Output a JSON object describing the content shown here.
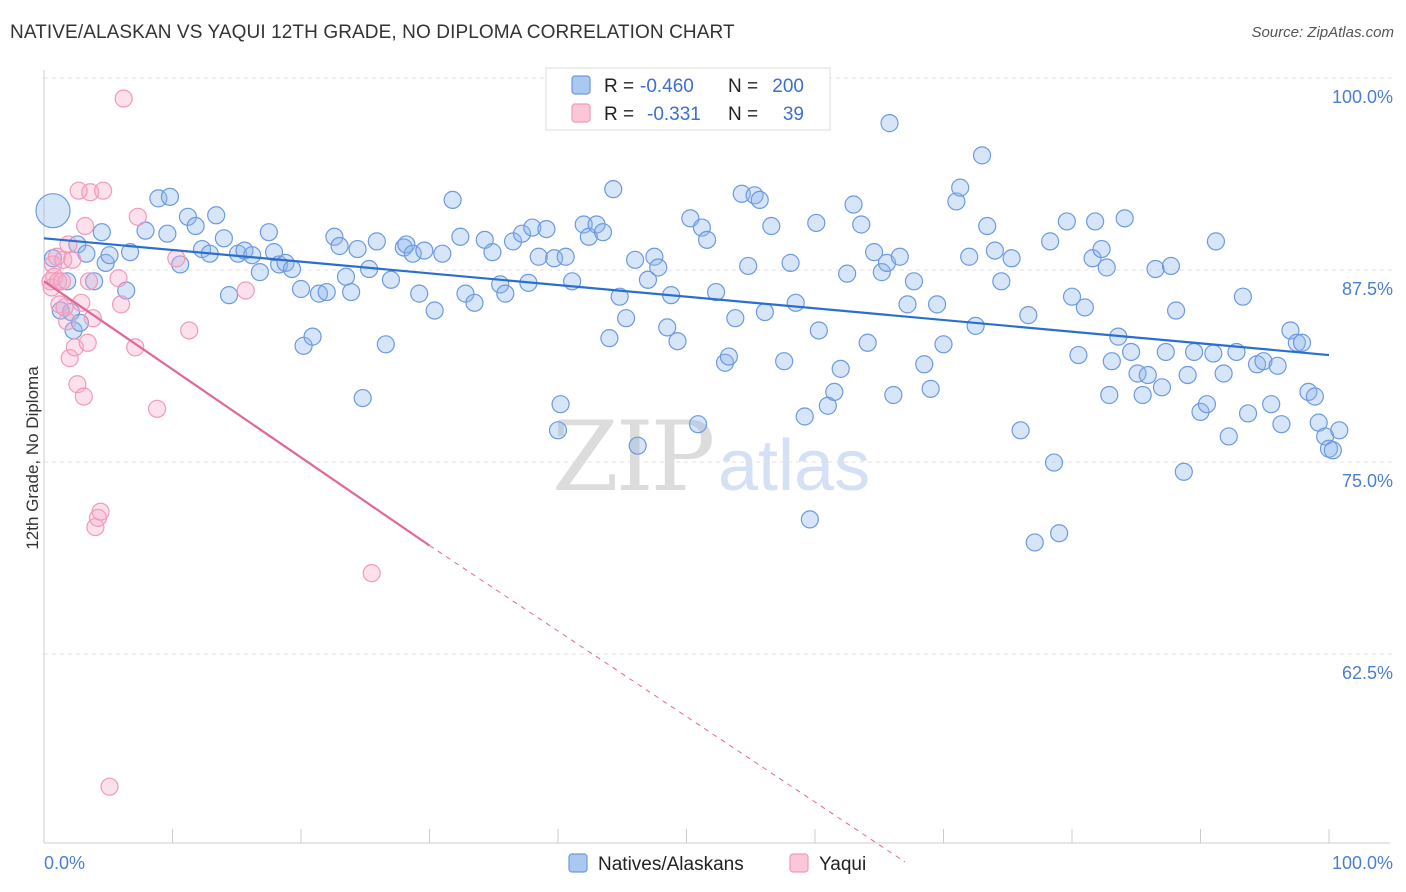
{
  "header": {
    "title": "NATIVE/ALASKAN VS YAQUI 12TH GRADE, NO DIPLOMA CORRELATION CHART",
    "source": "Source: ZipAtlas.com"
  },
  "legend": {
    "rows": [
      {
        "r_label": "R =",
        "r_value": "-0.460",
        "n_label": "N =",
        "n_value": "200",
        "color": "#6c9ae0"
      },
      {
        "r_label": "R =",
        "r_value": "-0.331",
        "n_label": "N =",
        "n_value": "39",
        "color": "#f09ab8"
      }
    ]
  },
  "bottom_legend": {
    "items": [
      {
        "label": "Natives/Alaskans",
        "color": "#6c9ae0"
      },
      {
        "label": "Yaqui",
        "color": "#f09ab8"
      }
    ]
  },
  "watermark": {
    "zip": "ZIP",
    "atlas": "atlas"
  },
  "chart_data": {
    "type": "scatter",
    "title": "NATIVE/ALASKAN VS YAQUI 12TH GRADE, NO DIPLOMA CORRELATION CHART",
    "xlabel": "",
    "ylabel": "12th Grade, No Diploma",
    "xlim": [
      0,
      100
    ],
    "ylim": [
      52.5,
      102.5
    ],
    "x_tick_labels": [
      "0.0%",
      "100.0%"
    ],
    "y_ticks": [
      100,
      87.5,
      75,
      62.5
    ],
    "y_tick_labels": [
      "100.0%",
      "87.5%",
      "75.0%",
      "62.5%"
    ],
    "grid": "horizontal dashed",
    "legend_position": "top-center",
    "colors": {
      "natives": "#6c9ae0",
      "yaqui": "#f09ab8",
      "natives_line": "#2a6fd0",
      "yaqui_line": "#e0679a"
    },
    "series": [
      {
        "name": "Natives/Alaskans",
        "trend": {
          "x": [
            0,
            100
          ],
          "y": [
            90.8,
            83.2
          ]
        },
        "points": [
          [
            0.7,
            92.6
          ],
          [
            0.7,
            89.5
          ],
          [
            1.3,
            86.1
          ],
          [
            1.8,
            88.0
          ],
          [
            2.1,
            86.0
          ],
          [
            2.3,
            84.8
          ],
          [
            2.6,
            90.4
          ],
          [
            2.8,
            85.3
          ],
          [
            3.3,
            89.8
          ],
          [
            3.9,
            88.0
          ],
          [
            4.5,
            91.2
          ],
          [
            4.8,
            89.2
          ],
          [
            5.1,
            89.7
          ],
          [
            6.4,
            87.4
          ],
          [
            6.7,
            89.9
          ],
          [
            7.9,
            91.3
          ],
          [
            8.9,
            93.4
          ],
          [
            9.6,
            91.1
          ],
          [
            9.8,
            93.5
          ],
          [
            10.6,
            89.1
          ],
          [
            11.2,
            92.2
          ],
          [
            11.8,
            91.6
          ],
          [
            12.3,
            90.1
          ],
          [
            12.9,
            89.8
          ],
          [
            13.4,
            92.3
          ],
          [
            14.0,
            90.8
          ],
          [
            14.4,
            87.1
          ],
          [
            15.1,
            89.8
          ],
          [
            15.6,
            90.0
          ],
          [
            16.2,
            89.7
          ],
          [
            16.8,
            88.6
          ],
          [
            17.5,
            91.2
          ],
          [
            17.9,
            89.9
          ],
          [
            18.3,
            89.1
          ],
          [
            18.8,
            89.2
          ],
          [
            19.3,
            88.8
          ],
          [
            20.0,
            87.5
          ],
          [
            20.2,
            83.8
          ],
          [
            20.9,
            84.4
          ],
          [
            21.4,
            87.2
          ],
          [
            22.0,
            87.3
          ],
          [
            22.6,
            90.9
          ],
          [
            23.0,
            90.3
          ],
          [
            23.5,
            88.3
          ],
          [
            23.9,
            87.3
          ],
          [
            24.4,
            90.1
          ],
          [
            24.8,
            80.4
          ],
          [
            25.3,
            88.8
          ],
          [
            25.9,
            90.6
          ],
          [
            26.6,
            83.9
          ],
          [
            27.0,
            88.1
          ],
          [
            28.0,
            90.2
          ],
          [
            28.2,
            90.4
          ],
          [
            28.7,
            89.8
          ],
          [
            29.2,
            87.2
          ],
          [
            29.6,
            90.0
          ],
          [
            30.4,
            86.1
          ],
          [
            31.0,
            89.8
          ],
          [
            31.8,
            93.3
          ],
          [
            32.4,
            90.9
          ],
          [
            32.8,
            87.2
          ],
          [
            33.5,
            86.6
          ],
          [
            34.3,
            90.7
          ],
          [
            34.9,
            89.9
          ],
          [
            35.5,
            87.8
          ],
          [
            35.9,
            87.2
          ],
          [
            36.5,
            90.6
          ],
          [
            37.2,
            91.1
          ],
          [
            37.7,
            87.9
          ],
          [
            38.0,
            91.5
          ],
          [
            38.5,
            89.6
          ],
          [
            39.1,
            91.4
          ],
          [
            39.7,
            89.5
          ],
          [
            40.0,
            78.3
          ],
          [
            40.6,
            89.6
          ],
          [
            41.1,
            88.0
          ],
          [
            42.0,
            91.7
          ],
          [
            42.4,
            90.9
          ],
          [
            43.0,
            91.7
          ],
          [
            43.5,
            91.2
          ],
          [
            44.0,
            84.3
          ],
          [
            44.3,
            94.0
          ],
          [
            44.8,
            87.0
          ],
          [
            45.3,
            85.6
          ],
          [
            46.0,
            89.4
          ],
          [
            46.2,
            77.3
          ],
          [
            47.0,
            88.1
          ],
          [
            47.5,
            89.6
          ],
          [
            47.8,
            88.9
          ],
          [
            48.5,
            85.0
          ],
          [
            48.8,
            87.1
          ],
          [
            49.3,
            84.1
          ],
          [
            50.3,
            92.1
          ],
          [
            50.9,
            78.7
          ],
          [
            51.2,
            91.5
          ],
          [
            51.6,
            90.7
          ],
          [
            52.3,
            87.3
          ],
          [
            53.0,
            82.7
          ],
          [
            53.3,
            83.1
          ],
          [
            53.8,
            85.6
          ],
          [
            54.3,
            93.7
          ],
          [
            54.8,
            89.0
          ],
          [
            55.3,
            93.6
          ],
          [
            55.7,
            93.3
          ],
          [
            56.1,
            86.0
          ],
          [
            56.6,
            91.6
          ],
          [
            57.6,
            82.8
          ],
          [
            58.1,
            89.2
          ],
          [
            58.5,
            86.6
          ],
          [
            59.2,
            79.2
          ],
          [
            59.6,
            72.5
          ],
          [
            60.1,
            91.8
          ],
          [
            60.3,
            84.8
          ],
          [
            61.0,
            79.9
          ],
          [
            61.5,
            80.8
          ],
          [
            62.0,
            82.3
          ],
          [
            62.5,
            88.5
          ],
          [
            63.0,
            93.0
          ],
          [
            63.6,
            91.7
          ],
          [
            64.1,
            84.0
          ],
          [
            64.6,
            89.9
          ],
          [
            65.2,
            88.6
          ],
          [
            65.6,
            89.2
          ],
          [
            66.1,
            80.6
          ],
          [
            66.6,
            89.6
          ],
          [
            67.2,
            86.5
          ],
          [
            67.7,
            88.0
          ],
          [
            68.5,
            82.6
          ],
          [
            69.0,
            81.0
          ],
          [
            69.5,
            86.5
          ],
          [
            70.0,
            83.9
          ],
          [
            71.0,
            93.2
          ],
          [
            71.3,
            94.1
          ],
          [
            72.0,
            89.6
          ],
          [
            72.5,
            85.1
          ],
          [
            73.0,
            96.2
          ],
          [
            73.4,
            91.6
          ],
          [
            74.0,
            90.0
          ],
          [
            74.5,
            88.0
          ],
          [
            75.3,
            89.5
          ],
          [
            76.0,
            78.3
          ],
          [
            76.6,
            85.8
          ],
          [
            77.1,
            71.0
          ],
          [
            78.3,
            90.6
          ],
          [
            78.6,
            76.2
          ],
          [
            79.0,
            71.6
          ],
          [
            79.6,
            91.9
          ],
          [
            80.0,
            87.0
          ],
          [
            80.5,
            83.2
          ],
          [
            81.0,
            86.3
          ],
          [
            81.6,
            89.5
          ],
          [
            81.8,
            91.9
          ],
          [
            82.3,
            90.1
          ],
          [
            82.7,
            88.9
          ],
          [
            82.9,
            80.6
          ],
          [
            83.1,
            82.8
          ],
          [
            83.6,
            84.4
          ],
          [
            84.1,
            92.1
          ],
          [
            84.6,
            83.4
          ],
          [
            85.1,
            82.0
          ],
          [
            85.5,
            80.6
          ],
          [
            85.9,
            81.9
          ],
          [
            86.5,
            88.8
          ],
          [
            87.0,
            81.1
          ],
          [
            87.3,
            83.4
          ],
          [
            87.7,
            89.0
          ],
          [
            88.1,
            86.1
          ],
          [
            88.7,
            75.6
          ],
          [
            89.0,
            81.9
          ],
          [
            89.5,
            83.4
          ],
          [
            90.0,
            79.5
          ],
          [
            90.5,
            80.0
          ],
          [
            91.0,
            83.3
          ],
          [
            91.2,
            90.6
          ],
          [
            91.8,
            82.0
          ],
          [
            92.2,
            77.9
          ],
          [
            92.8,
            83.4
          ],
          [
            93.3,
            87.0
          ],
          [
            93.7,
            79.4
          ],
          [
            94.4,
            82.6
          ],
          [
            94.9,
            82.8
          ],
          [
            95.5,
            80.0
          ],
          [
            96.0,
            82.5
          ],
          [
            96.3,
            78.7
          ],
          [
            97.0,
            84.8
          ],
          [
            97.5,
            84.0
          ],
          [
            97.9,
            84.0
          ],
          [
            98.4,
            80.8
          ],
          [
            98.9,
            80.5
          ],
          [
            99.2,
            78.8
          ],
          [
            99.7,
            77.9
          ],
          [
            100.0,
            77.1
          ],
          [
            100.3,
            77.0
          ],
          [
            100.8,
            78.3
          ],
          [
            65.8,
            98.3
          ],
          [
            40.2,
            80.0
          ]
        ]
      },
      {
        "name": "Yaqui",
        "trend": {
          "x": [
            0,
            30
          ],
          "y": [
            88.0,
            70.8
          ]
        },
        "trend_dashed": {
          "x": [
            30,
            67
          ],
          "y": [
            70.8,
            50.2
          ]
        },
        "points": [
          [
            0.5,
            88.0
          ],
          [
            0.6,
            87.6
          ],
          [
            0.7,
            89.1
          ],
          [
            0.8,
            88.3
          ],
          [
            1.0,
            89.6
          ],
          [
            1.1,
            88.0
          ],
          [
            1.2,
            86.5
          ],
          [
            1.4,
            88.0
          ],
          [
            1.5,
            89.4
          ],
          [
            1.8,
            85.4
          ],
          [
            1.9,
            90.4
          ],
          [
            2.0,
            83.0
          ],
          [
            2.2,
            89.4
          ],
          [
            2.4,
            83.7
          ],
          [
            2.6,
            81.3
          ],
          [
            2.7,
            93.9
          ],
          [
            2.9,
            86.6
          ],
          [
            3.1,
            80.5
          ],
          [
            3.2,
            91.6
          ],
          [
            3.4,
            84.0
          ],
          [
            3.5,
            88.0
          ],
          [
            3.6,
            93.8
          ],
          [
            3.8,
            85.6
          ],
          [
            4.0,
            72.0
          ],
          [
            4.2,
            72.6
          ],
          [
            4.4,
            73.0
          ],
          [
            4.6,
            93.9
          ],
          [
            5.1,
            55.1
          ],
          [
            5.8,
            88.2
          ],
          [
            6.0,
            86.5
          ],
          [
            6.2,
            99.9
          ],
          [
            7.1,
            83.7
          ],
          [
            7.3,
            92.2
          ],
          [
            8.8,
            79.7
          ],
          [
            10.3,
            89.5
          ],
          [
            11.3,
            84.8
          ],
          [
            15.7,
            87.4
          ],
          [
            25.5,
            69.0
          ],
          [
            1.6,
            86.3
          ]
        ]
      }
    ]
  }
}
